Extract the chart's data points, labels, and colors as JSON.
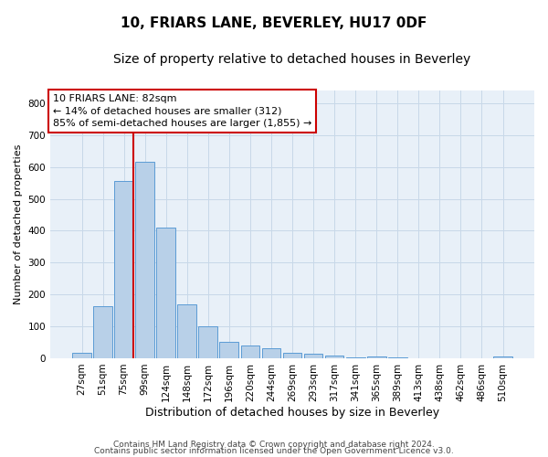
{
  "title": "10, FRIARS LANE, BEVERLEY, HU17 0DF",
  "subtitle": "Size of property relative to detached houses in Beverley",
  "xlabel": "Distribution of detached houses by size in Beverley",
  "ylabel": "Number of detached properties",
  "categories": [
    "27sqm",
    "51sqm",
    "75sqm",
    "99sqm",
    "124sqm",
    "148sqm",
    "172sqm",
    "196sqm",
    "220sqm",
    "244sqm",
    "269sqm",
    "293sqm",
    "317sqm",
    "341sqm",
    "365sqm",
    "389sqm",
    "413sqm",
    "438sqm",
    "462sqm",
    "486sqm",
    "510sqm"
  ],
  "values": [
    18,
    163,
    557,
    617,
    411,
    170,
    100,
    52,
    40,
    30,
    18,
    14,
    8,
    4,
    5,
    2,
    0,
    0,
    0,
    0,
    5
  ],
  "bar_color": "#b8d0e8",
  "bar_edge_color": "#5b9bd5",
  "grid_color": "#c8d8e8",
  "background_color": "#e8f0f8",
  "vline_color": "#cc0000",
  "vline_pos": 2.47,
  "annotation_text": "10 FRIARS LANE: 82sqm\n← 14% of detached houses are smaller (312)\n85% of semi-detached houses are larger (1,855) →",
  "annotation_box_color": "#ffffff",
  "annotation_box_edge": "#cc0000",
  "ylim": [
    0,
    840
  ],
  "yticks": [
    0,
    100,
    200,
    300,
    400,
    500,
    600,
    700,
    800
  ],
  "footer_line1": "Contains HM Land Registry data © Crown copyright and database right 2024.",
  "footer_line2": "Contains public sector information licensed under the Open Government Licence v3.0.",
  "title_fontsize": 11,
  "subtitle_fontsize": 10,
  "xlabel_fontsize": 9,
  "ylabel_fontsize": 8,
  "tick_fontsize": 7.5,
  "annot_fontsize": 8,
  "footer_fontsize": 6.5
}
